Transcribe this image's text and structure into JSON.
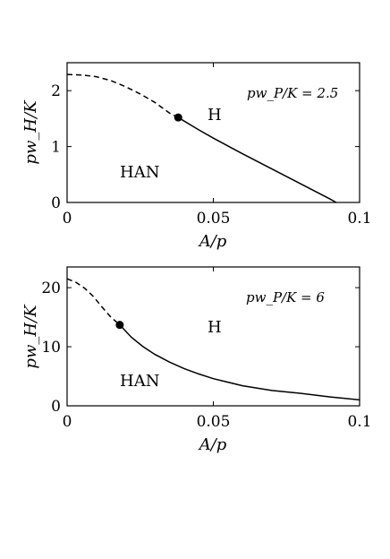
{
  "chart_data": [
    {
      "type": "line",
      "xlabel": "A/p",
      "ylabel": "pw_H/K",
      "annotation": "pw_P/K = 2.5",
      "xlim": [
        0,
        0.1
      ],
      "ylim": [
        0,
        2.5
      ],
      "xticks": [
        "0",
        "0.05",
        "0.1"
      ],
      "yticks": [
        "0",
        "1",
        "2"
      ],
      "xtick_values": [
        0,
        0.05,
        0.1
      ],
      "ytick_values": [
        0,
        1,
        2
      ],
      "regions": [
        "H",
        "HAN"
      ],
      "series": [
        {
          "style": "dashed",
          "x": [
            0,
            0.005,
            0.01,
            0.015,
            0.02,
            0.025,
            0.03,
            0.035,
            0.038
          ],
          "y": [
            2.29,
            2.28,
            2.25,
            2.18,
            2.07,
            1.94,
            1.79,
            1.6,
            1.52
          ]
        },
        {
          "style": "solid",
          "x": [
            0.038,
            0.045,
            0.05,
            0.06,
            0.07,
            0.08,
            0.09,
            0.092
          ],
          "y": [
            1.52,
            1.3,
            1.15,
            0.87,
            0.6,
            0.33,
            0.06,
            0
          ]
        }
      ],
      "point": {
        "x": 0.038,
        "y": 1.52
      }
    },
    {
      "type": "line",
      "xlabel": "A/p",
      "ylabel": "pw_H/K",
      "annotation": "pw_P/K = 6",
      "xlim": [
        0,
        0.1
      ],
      "ylim": [
        0,
        23.5
      ],
      "xticks": [
        "0",
        "0.05",
        "0.1"
      ],
      "yticks": [
        "0",
        "10",
        "20"
      ],
      "xtick_values": [
        0,
        0.05,
        0.1
      ],
      "ytick_values": [
        0,
        10,
        20
      ],
      "regions": [
        "H",
        "HAN"
      ],
      "series": [
        {
          "style": "dashed",
          "x": [
            0,
            0.003,
            0.006,
            0.009,
            0.012,
            0.015,
            0.018
          ],
          "y": [
            21.5,
            20.9,
            19.9,
            18.5,
            16.7,
            15,
            13.7
          ]
        },
        {
          "style": "solid",
          "x": [
            0.018,
            0.022,
            0.026,
            0.03,
            0.035,
            0.04,
            0.045,
            0.05,
            0.06,
            0.07,
            0.08,
            0.09,
            0.1
          ],
          "y": [
            13.7,
            11.6,
            10,
            8.7,
            7.4,
            6.3,
            5.4,
            4.6,
            3.4,
            2.6,
            2.1,
            1.5,
            1
          ]
        }
      ],
      "point": {
        "x": 0.018,
        "y": 13.7
      }
    }
  ]
}
